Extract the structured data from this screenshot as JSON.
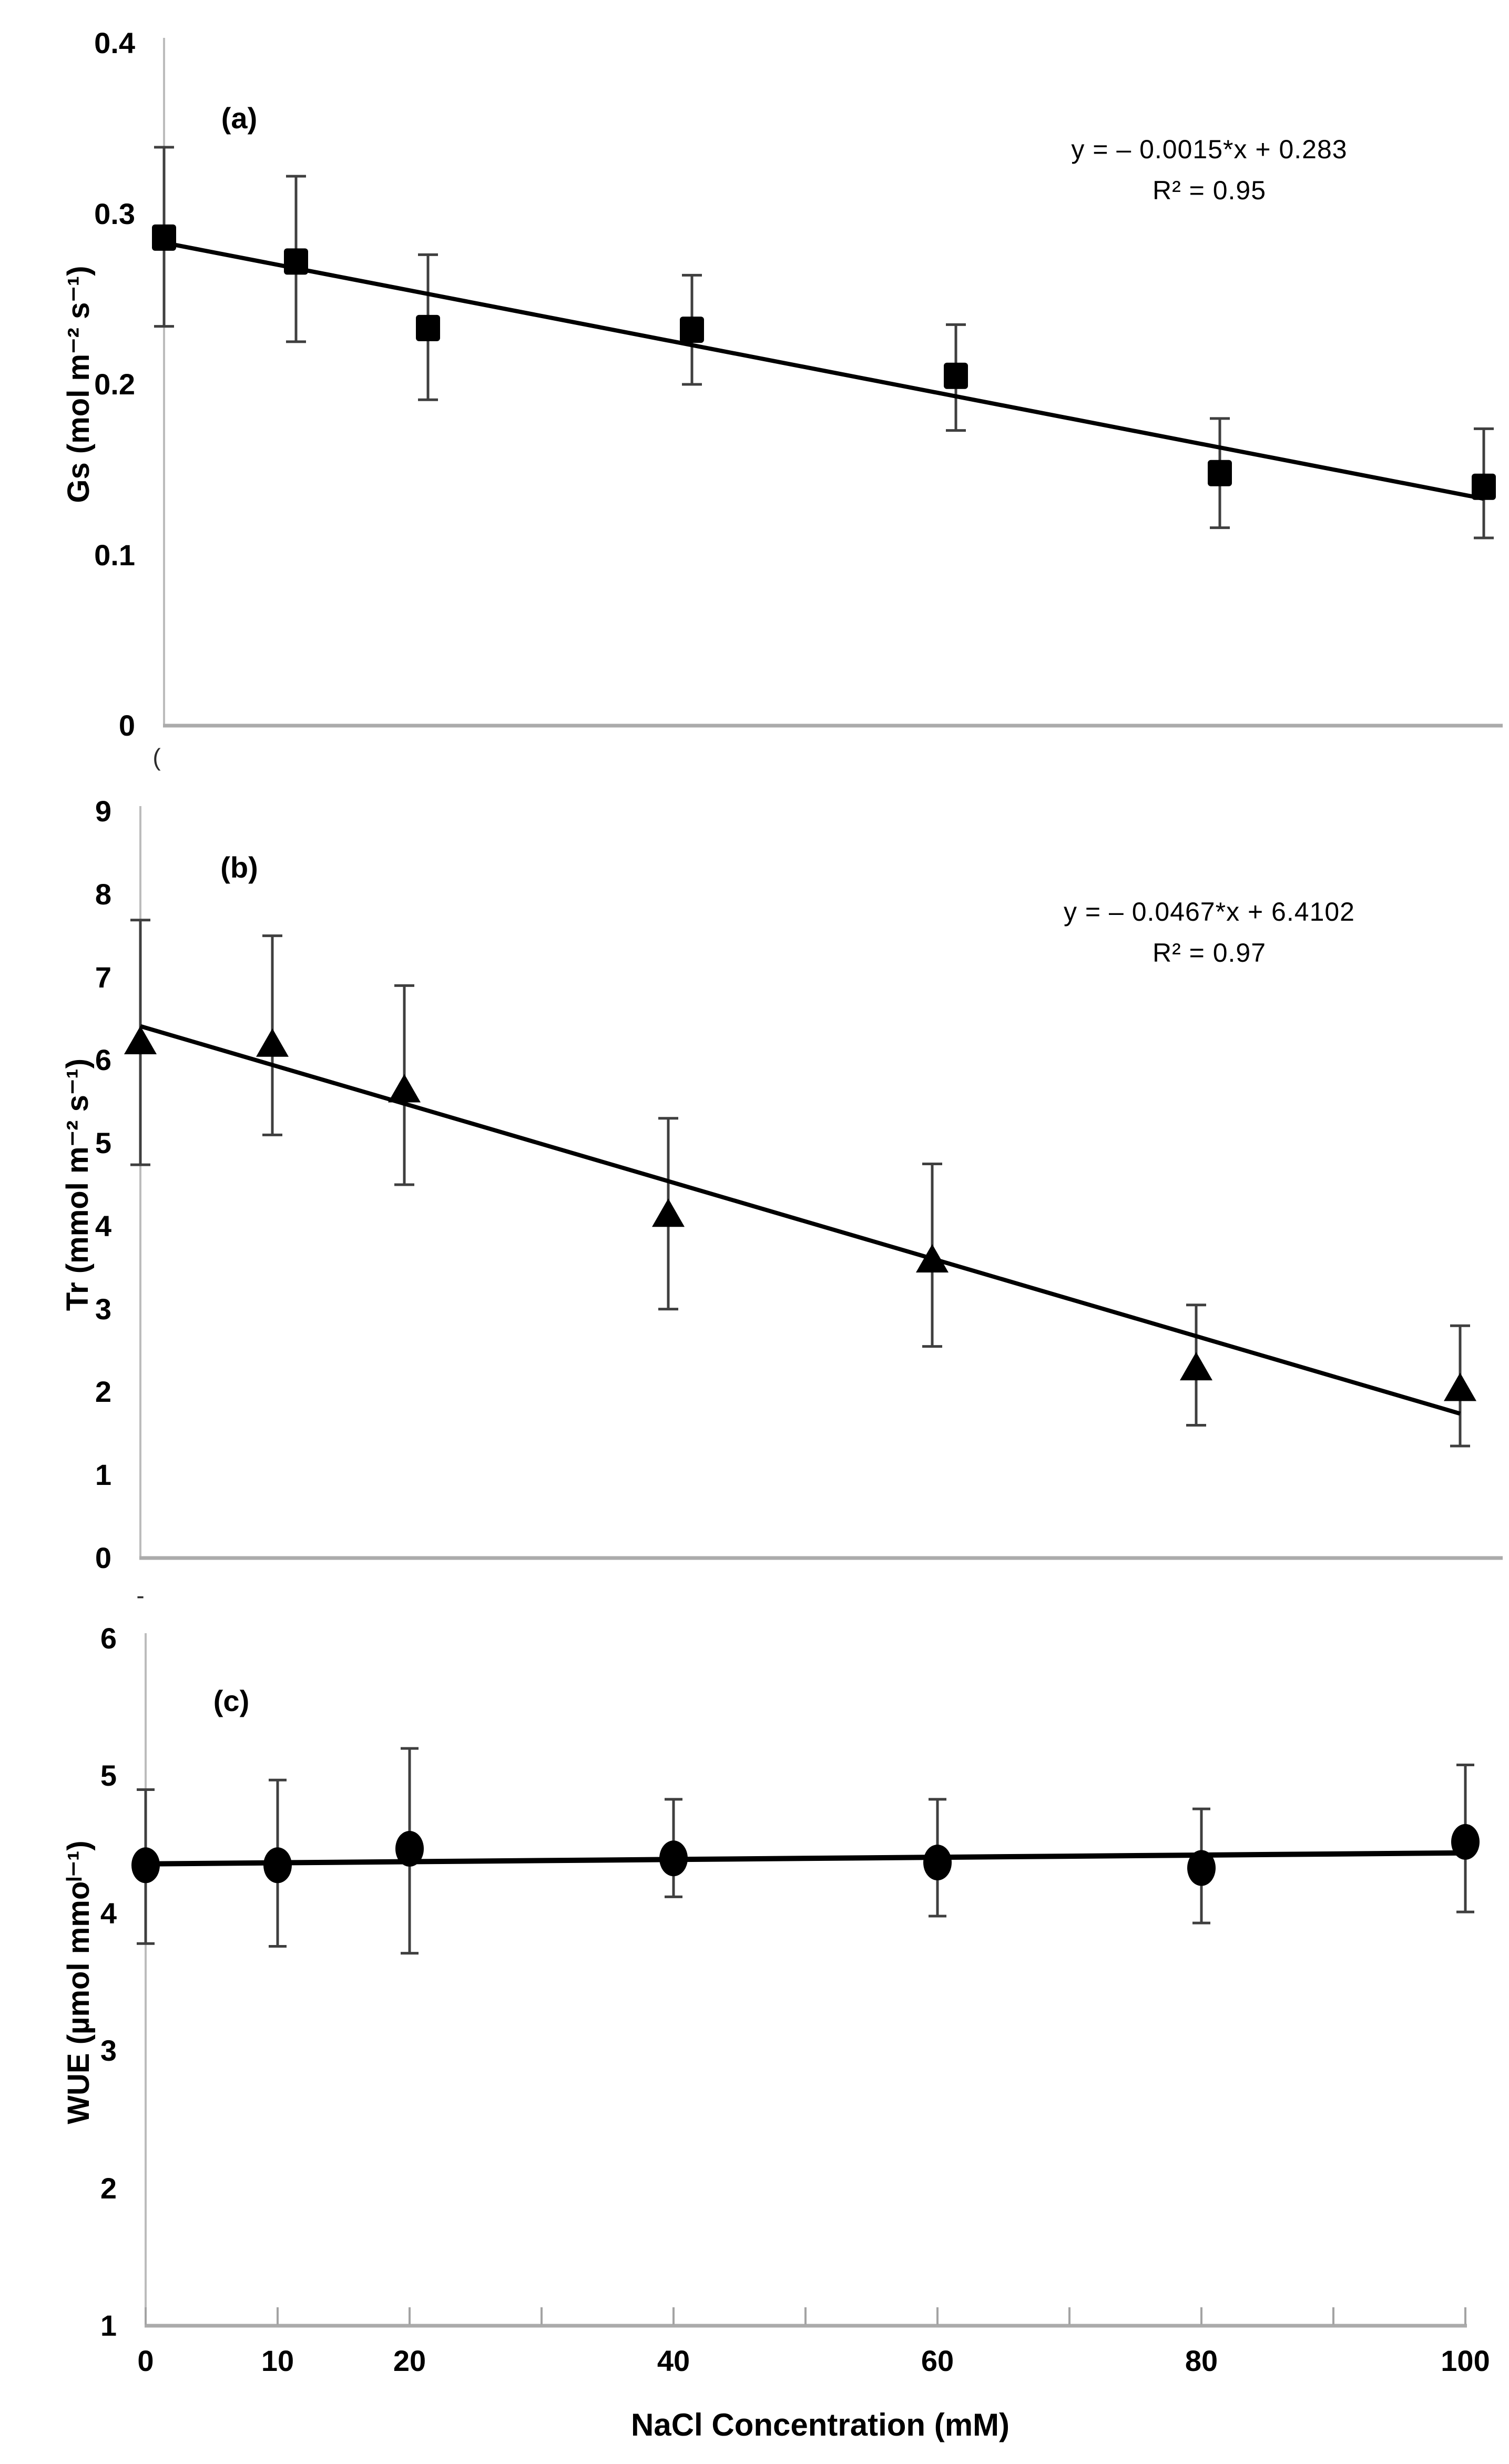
{
  "figure": {
    "x_axis_title": "NaCl Concentration (mM)",
    "x_tick_marks": [
      0,
      10,
      20,
      30,
      40,
      50,
      60,
      70,
      80,
      90,
      100
    ],
    "x_tick_labels": [
      {
        "value": 0,
        "label": "0"
      },
      {
        "value": 10,
        "label": "10"
      },
      {
        "value": 20,
        "label": "20"
      },
      {
        "value": 40,
        "label": "40"
      },
      {
        "value": 60,
        "label": "60"
      },
      {
        "value": 80,
        "label": "80"
      },
      {
        "value": 100,
        "label": "100"
      }
    ],
    "stray_marks": [
      {
        "text": "("
      },
      {
        "text": "-"
      }
    ]
  },
  "chart_data": [
    {
      "panel_label": "(a)",
      "type": "scatter",
      "marker": "square",
      "ylabel": "Gs (mol m⁻² s⁻¹)",
      "equation": "y = – 0.0015*x + 0.283",
      "r_squared": "R² = 0.95",
      "x": [
        0,
        10,
        20,
        40,
        60,
        80,
        100
      ],
      "y": [
        0.286,
        0.272,
        0.233,
        0.232,
        0.205,
        0.148,
        0.14
      ],
      "error_upper": [
        0.339,
        0.322,
        0.276,
        0.264,
        0.235,
        0.18,
        0.174
      ],
      "error_lower": [
        0.234,
        0.225,
        0.191,
        0.2,
        0.173,
        0.116,
        0.11
      ],
      "trend": {
        "slope": -0.0015,
        "intercept": 0.283
      },
      "xlim": [
        0,
        100
      ],
      "ylim": [
        0,
        0.4
      ],
      "y_ticks": [
        0,
        0.1,
        0.2,
        0.3,
        0.4
      ],
      "y_tick_labels": [
        "0",
        "0.1",
        "0.2",
        "0.3",
        "0.4"
      ],
      "grid": false,
      "legend": false
    },
    {
      "panel_label": "(b)",
      "type": "scatter",
      "marker": "triangle",
      "ylabel": "Tr (mmol m⁻² s⁻¹)",
      "equation": "y = – 0.0467*x + 6.4102",
      "r_squared": "R² = 0.97",
      "x": [
        0,
        10,
        20,
        40,
        60,
        80,
        100
      ],
      "y": [
        6.23,
        6.2,
        5.65,
        4.15,
        3.6,
        2.3,
        2.05
      ],
      "error_upper": [
        7.69,
        7.5,
        6.9,
        5.3,
        4.75,
        3.05,
        2.8
      ],
      "error_lower": [
        4.74,
        5.1,
        4.5,
        3.0,
        2.55,
        1.6,
        1.35
      ],
      "trend": {
        "slope": -0.0467,
        "intercept": 6.4102
      },
      "xlim": [
        0,
        100
      ],
      "ylim": [
        0,
        9
      ],
      "y_ticks": [
        0,
        1,
        2,
        3,
        4,
        5,
        6,
        7,
        8,
        9
      ],
      "y_tick_labels": [
        "0",
        "1",
        "2",
        "3",
        "4",
        "5",
        "6",
        "7",
        "8",
        "9"
      ],
      "grid": false,
      "legend": false
    },
    {
      "panel_label": "(c)",
      "type": "scatter",
      "marker": "circle",
      "ylabel": "WUE (µmol mmoˡ⁻¹)",
      "equation": null,
      "r_squared": null,
      "x": [
        0,
        10,
        20,
        40,
        60,
        80,
        100
      ],
      "y": [
        4.35,
        4.35,
        4.47,
        4.4,
        4.37,
        4.33,
        4.52
      ],
      "error_upper": [
        4.9,
        4.97,
        5.2,
        4.83,
        4.83,
        4.76,
        5.08
      ],
      "error_lower": [
        3.78,
        3.76,
        3.71,
        4.12,
        3.98,
        3.93,
        4.01
      ],
      "trend": {
        "slope": 0.0008,
        "intercept": 4.36
      },
      "xlim": [
        0,
        100
      ],
      "ylim": [
        1,
        6
      ],
      "y_ticks": [
        1,
        2,
        3,
        4,
        5,
        6
      ],
      "y_tick_labels": [
        "1",
        "2",
        "3",
        "4",
        "5",
        "6"
      ],
      "grid": false,
      "legend": false
    }
  ]
}
